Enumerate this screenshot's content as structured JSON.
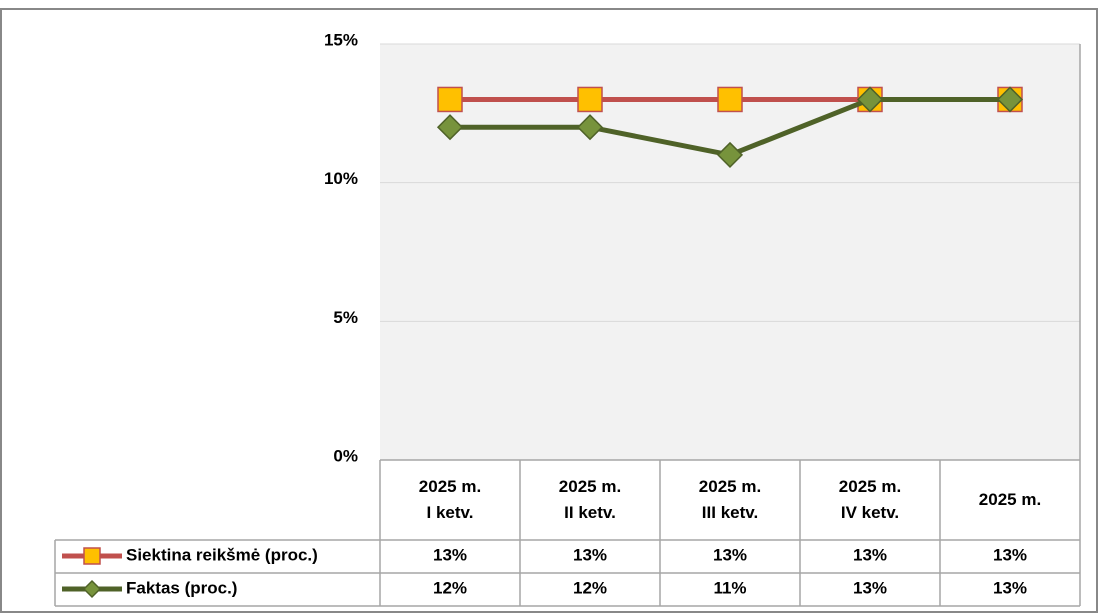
{
  "chart_data": {
    "type": "line",
    "categories": [
      "2025 m. I ketv.",
      "2025 m. II ketv.",
      "2025 m. III ketv.",
      "2025 m. IV ketv.",
      "2025 m."
    ],
    "series": [
      {
        "name": "Siektina reikšmė (proc.)",
        "color": "#c0504d",
        "marker": "square",
        "marker_color": "#ffc000",
        "values": [
          13,
          13,
          13,
          13,
          13
        ],
        "value_labels": [
          "13%",
          "13%",
          "13%",
          "13%",
          "13%"
        ]
      },
      {
        "name": "Faktas (proc.)",
        "color": "#4f6228",
        "marker": "diamond",
        "marker_color": "#77933c",
        "values": [
          12,
          12,
          11,
          13,
          13
        ],
        "value_labels": [
          "12%",
          "12%",
          "11%",
          "13%",
          "13%"
        ]
      }
    ],
    "ylim": [
      0,
      15
    ],
    "yticks": [
      {
        "value": 0,
        "label": "0%"
      },
      {
        "value": 5,
        "label": "5%"
      },
      {
        "value": 10,
        "label": "10%"
      },
      {
        "value": 15,
        "label": "15%"
      }
    ],
    "grid": true
  }
}
